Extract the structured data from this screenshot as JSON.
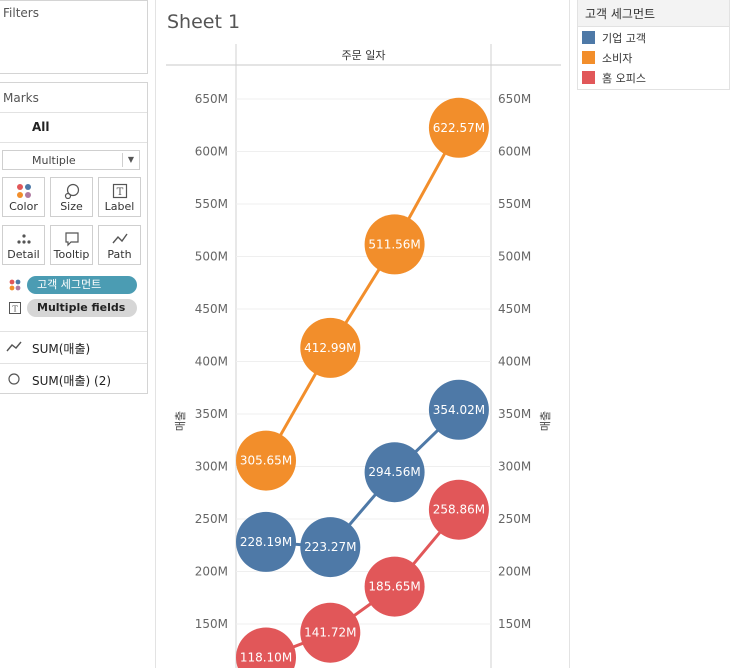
{
  "filters": {
    "title": "Filters"
  },
  "marks": {
    "title": "Marks",
    "all_label": "All",
    "mark_type": "Multiple",
    "buttons": [
      {
        "label": "Color",
        "icon": "color-icon"
      },
      {
        "label": "Size",
        "icon": "size-icon"
      },
      {
        "label": "Label",
        "icon": "label-icon"
      },
      {
        "label": "Detail",
        "icon": "detail-icon"
      },
      {
        "label": "Tooltip",
        "icon": "tooltip-icon"
      },
      {
        "label": "Path",
        "icon": "path-icon"
      }
    ],
    "pills": [
      {
        "label": "고객 세그먼트",
        "icon": "color-icon"
      },
      {
        "label": "Multiple fields",
        "icon": "label-icon"
      }
    ],
    "measures": [
      {
        "label": "SUM(매출)",
        "icon": "line-icon"
      },
      {
        "label": "SUM(매출) (2)",
        "icon": "circle-icon"
      }
    ]
  },
  "sheet": {
    "title": "Sheet 1"
  },
  "legend": {
    "title": "고객 세그먼트",
    "items": [
      {
        "label": "기업 고객",
        "color": "#4e79a7"
      },
      {
        "label": "소비자",
        "color": "#f28e2b"
      },
      {
        "label": "홈 오피스",
        "color": "#e15759"
      }
    ]
  },
  "chart_data": {
    "type": "line",
    "column_header": "주문 일자",
    "ylabel": "매출",
    "y_ticks": [
      "150M",
      "200M",
      "250M",
      "300M",
      "350M",
      "400M",
      "450M",
      "500M",
      "550M",
      "600M",
      "650M"
    ],
    "ylim": [
      110,
      668
    ],
    "grid": true,
    "series": [
      {
        "name": "소비자",
        "color": "#f28e2b",
        "values": [
          305.65,
          412.99,
          511.56,
          622.57
        ],
        "labels": [
          "305.65M",
          "412.99M",
          "511.56M",
          "622.57M"
        ]
      },
      {
        "name": "기업 고객",
        "color": "#4e79a7",
        "values": [
          228.19,
          223.27,
          294.56,
          354.02
        ],
        "labels": [
          "228.19M",
          "223.27M",
          "294.56M",
          "354.02M"
        ]
      },
      {
        "name": "홈 오피스",
        "color": "#e15759",
        "values": [
          118.1,
          141.72,
          185.65,
          258.86
        ],
        "labels": [
          "118.10M",
          "141.72M",
          "185.65M",
          "258.86M"
        ]
      }
    ]
  }
}
